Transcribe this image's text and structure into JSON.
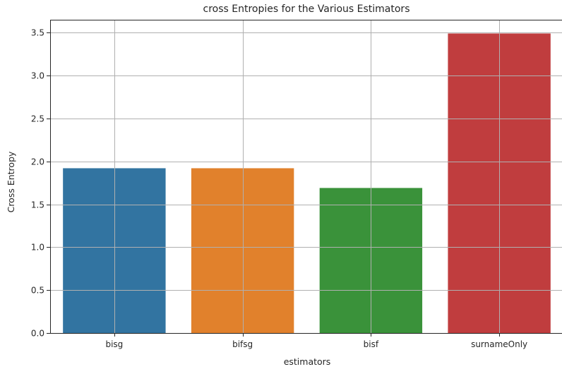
{
  "chart_data": {
    "type": "bar",
    "title": "cross Entropies for the Various Estimators",
    "xlabel": "estimators",
    "ylabel": "Cross Entropy",
    "categories": [
      "bisg",
      "bifsg",
      "bisf",
      "surnameOnly"
    ],
    "values": [
      1.92,
      1.92,
      1.69,
      3.49
    ],
    "colors": [
      "#3274a1",
      "#e1812c",
      "#3a923a",
      "#c03d3e"
    ],
    "ylim": [
      0,
      3.65
    ],
    "yticks": [
      0.0,
      0.5,
      1.0,
      1.5,
      2.0,
      2.5,
      3.0,
      3.5
    ],
    "ytick_labels": [
      "0.0",
      "0.5",
      "1.0",
      "1.5",
      "2.0",
      "2.5",
      "3.0",
      "3.5"
    ],
    "grid": true,
    "legend": "none"
  }
}
